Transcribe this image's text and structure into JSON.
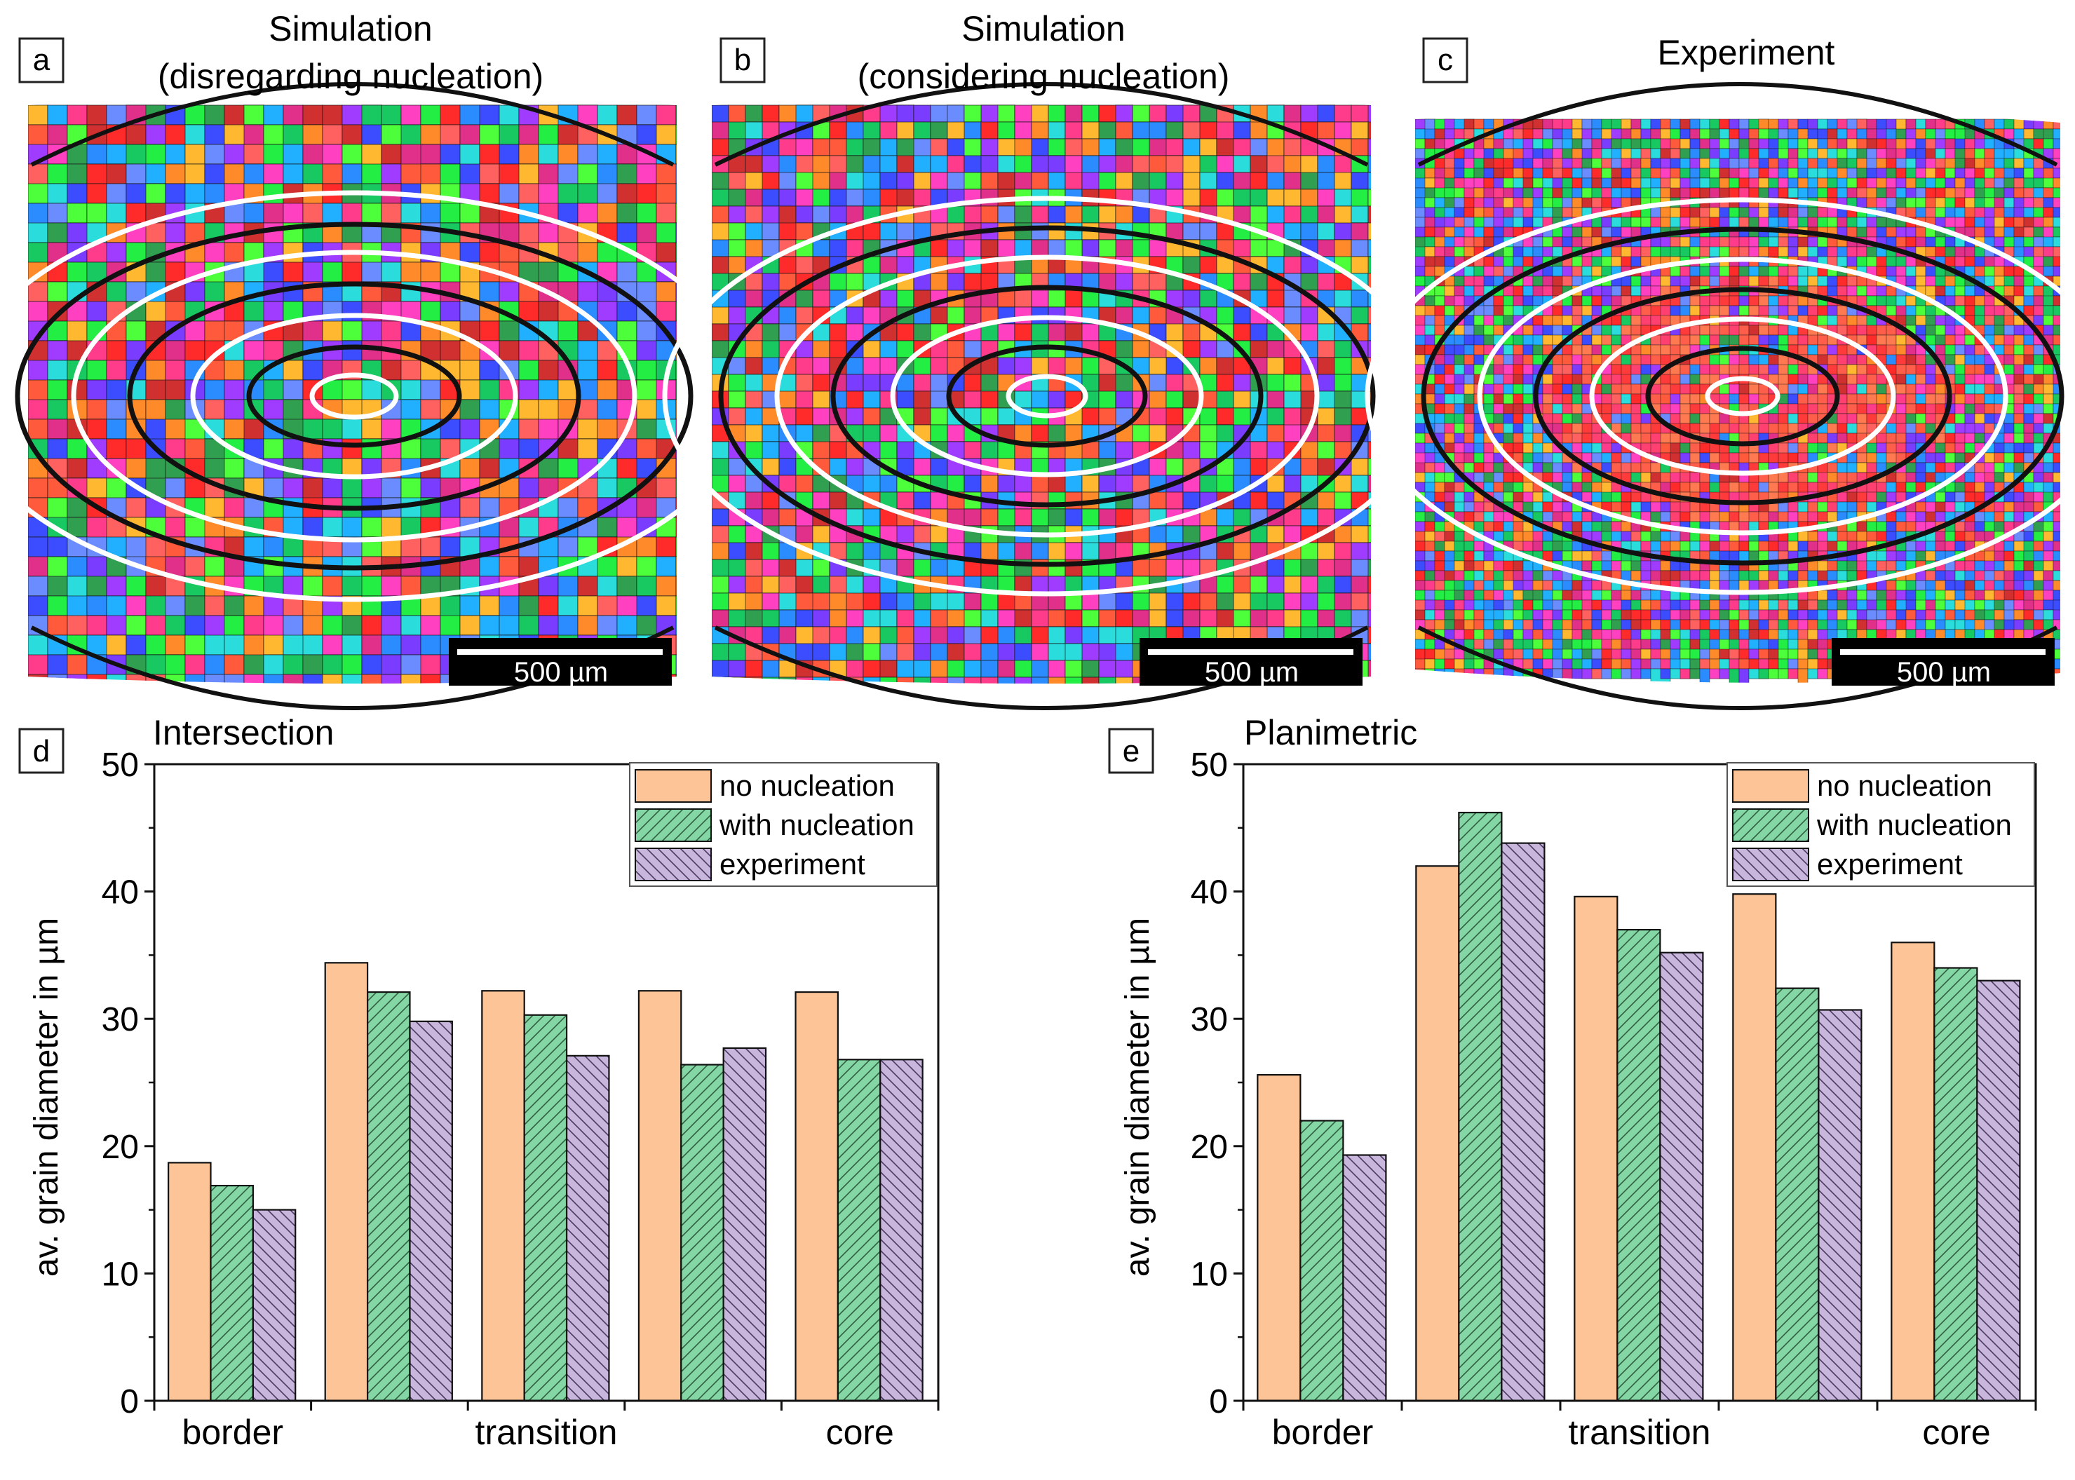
{
  "panels": [
    {
      "letter": "a",
      "title_lines": [
        "Simulation",
        "(disregarding nucleation)"
      ],
      "scale_label": "500 µm",
      "variant": "sim"
    },
    {
      "letter": "b",
      "title_lines": [
        "Simulation",
        "(considering nucleation)"
      ],
      "scale_label": "500 µm",
      "variant": "sim2"
    },
    {
      "letter": "c",
      "title_lines": [
        "Experiment"
      ],
      "scale_label": "500 µm",
      "variant": "exp"
    }
  ],
  "colors": {
    "no_nucleation": "#fcc497",
    "with_nucleation": "#84d7a4",
    "experiment": "#c8b6dd",
    "grain_palette": [
      "#ff2a2a",
      "#ff5a3c",
      "#ff8a2a",
      "#ff3c8c",
      "#e0308a",
      "#22ee44",
      "#4cff3a",
      "#18c860",
      "#2a8cff",
      "#3c4cff",
      "#7a3cff",
      "#a03cff",
      "#2adcdc",
      "#ffb830",
      "#ff6060",
      "#6a8cff",
      "#d03030",
      "#30a050",
      "#ff40c0",
      "#20b0ff"
    ]
  },
  "chart_data": [
    {
      "letter": "d",
      "type": "bar",
      "title": "Intersection",
      "ylabel": "av. grain diameter in µm",
      "xlabel": "",
      "ylim": [
        0,
        50
      ],
      "yticks": [
        0,
        10,
        20,
        30,
        40,
        50
      ],
      "categories": [
        "border",
        "",
        "transition",
        "",
        "core"
      ],
      "series": [
        {
          "name": "no nucleation",
          "values": [
            18.7,
            34.4,
            32.2,
            32.2,
            32.1
          ]
        },
        {
          "name": "with nucleation",
          "values": [
            16.9,
            32.1,
            30.3,
            26.4,
            26.8
          ]
        },
        {
          "name": "experiment",
          "values": [
            15.0,
            29.8,
            27.1,
            27.7,
            26.8
          ]
        }
      ],
      "legend": "top-right"
    },
    {
      "letter": "e",
      "type": "bar",
      "title": "Planimetric",
      "ylabel": "av. grain diameter in µm",
      "xlabel": "",
      "ylim": [
        0,
        50
      ],
      "yticks": [
        0,
        10,
        20,
        30,
        40,
        50
      ],
      "categories": [
        "border",
        "",
        "transition",
        "",
        "core"
      ],
      "series": [
        {
          "name": "no nucleation",
          "values": [
            25.6,
            42.0,
            39.6,
            39.8,
            36.0
          ]
        },
        {
          "name": "with nucleation",
          "values": [
            22.0,
            46.2,
            37.0,
            32.4,
            34.0
          ]
        },
        {
          "name": "experiment",
          "values": [
            19.3,
            43.8,
            35.2,
            30.7,
            33.0
          ]
        }
      ],
      "legend": "top-right"
    }
  ]
}
